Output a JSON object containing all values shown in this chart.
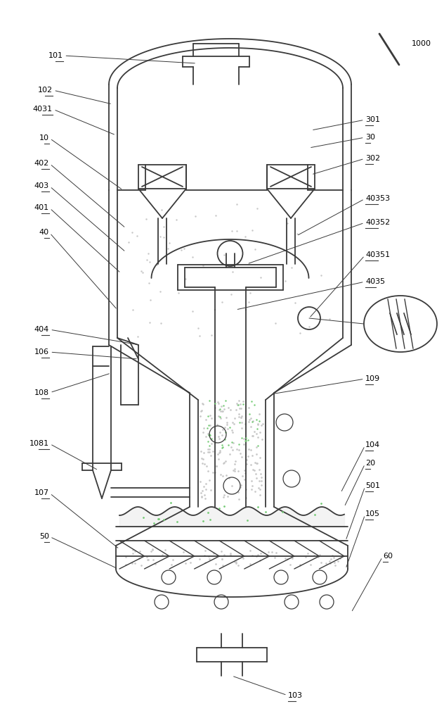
{
  "bg_color": "#ffffff",
  "line_color": "#3a3a3a",
  "label_color": "#000000",
  "lw": 1.3,
  "fig_width": 6.32,
  "fig_height": 10.0,
  "speckle_color": "#cccccc",
  "green_color": "#77cc77"
}
